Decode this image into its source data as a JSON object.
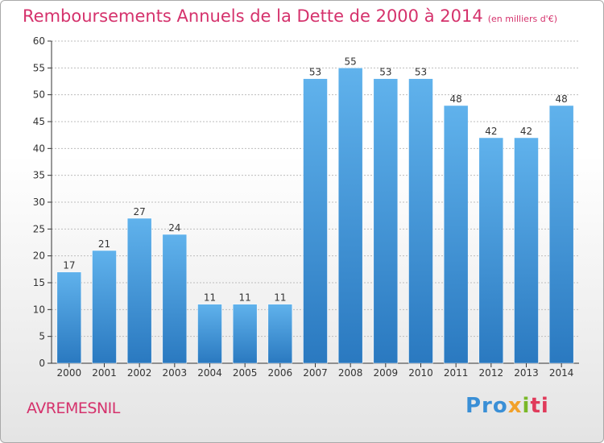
{
  "title": "Remboursements Annuels de la Dette de 2000 à 2014",
  "subtitle": "(en milliers d'€)",
  "location": "AVREMESNIL",
  "logo": {
    "parts": [
      "Pro",
      "x",
      "i",
      "ti"
    ]
  },
  "colors": {
    "bar": "#4a9ee0",
    "bar_light": "#60b2ec",
    "bar_dark": "#2a79c0",
    "title": "#d5326c",
    "axis": "#333333",
    "grid": "#bdbdbd"
  },
  "chart_data": {
    "type": "bar",
    "categories": [
      "2000",
      "2001",
      "2002",
      "2003",
      "2004",
      "2005",
      "2006",
      "2007",
      "2008",
      "2009",
      "2010",
      "2011",
      "2012",
      "2013",
      "2014"
    ],
    "values": [
      17,
      21,
      27,
      24,
      11,
      11,
      11,
      53,
      55,
      53,
      53,
      48,
      42,
      42,
      48
    ],
    "ylim": [
      0,
      60
    ],
    "yticks": [
      0,
      5,
      10,
      15,
      20,
      25,
      30,
      35,
      40,
      45,
      50,
      55,
      60
    ],
    "grid": true
  }
}
